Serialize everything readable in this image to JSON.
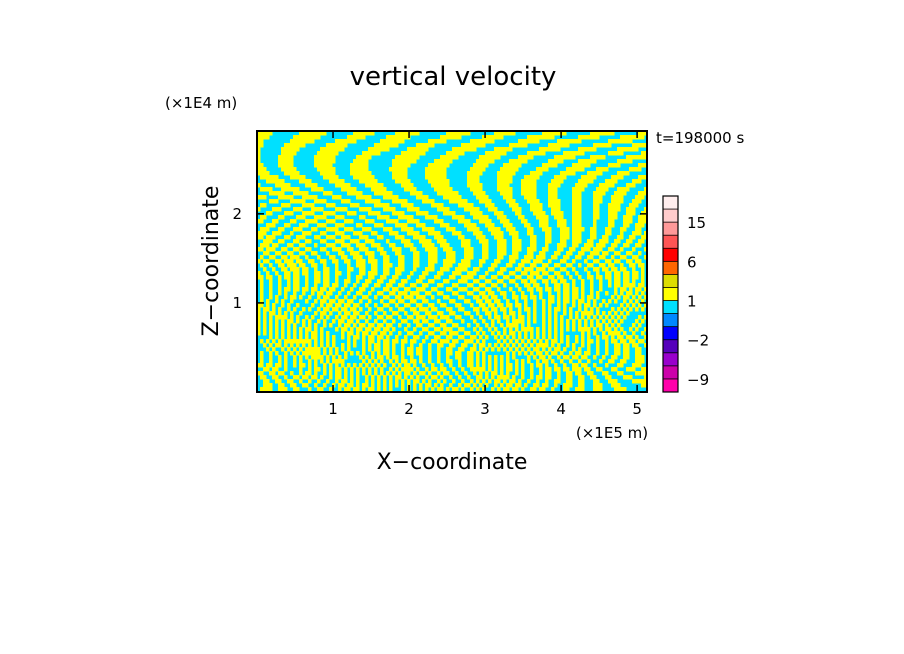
{
  "chart_data": {
    "type": "heatmap",
    "title": "vertical velocity",
    "xlabel": "X−coordinate",
    "ylabel": "Z−coordinate",
    "x_unit": "(×1E5 m)",
    "y_unit": "(×1E4 m)",
    "time_label": "t=198000 s",
    "x_ticks": [
      "1",
      "2",
      "3",
      "4",
      "5"
    ],
    "y_ticks": [
      "1",
      "2"
    ],
    "xlim": [
      0,
      5.13
    ],
    "ylim": [
      0,
      2.93
    ],
    "colorbar": {
      "levels": [
        -12,
        -9,
        -6,
        -4,
        -2,
        -1,
        0,
        1,
        2,
        4,
        6,
        9,
        12,
        15,
        20
      ],
      "colors": [
        "#ff00aa",
        "#cc00aa",
        "#9900cc",
        "#5500bb",
        "#0000ff",
        "#0088ff",
        "#00e0ff",
        "#ffff00",
        "#dddd00",
        "#ff6600",
        "#ff0000",
        "#ff5555",
        "#ff9999",
        "#ffcccc",
        "#ffeeee"
      ],
      "tick_labels": [
        "15",
        "6",
        "1",
        "−2",
        "−9"
      ]
    },
    "field_colors": {
      "positive": "#ffff00",
      "negative": "#00e0ff"
    }
  }
}
